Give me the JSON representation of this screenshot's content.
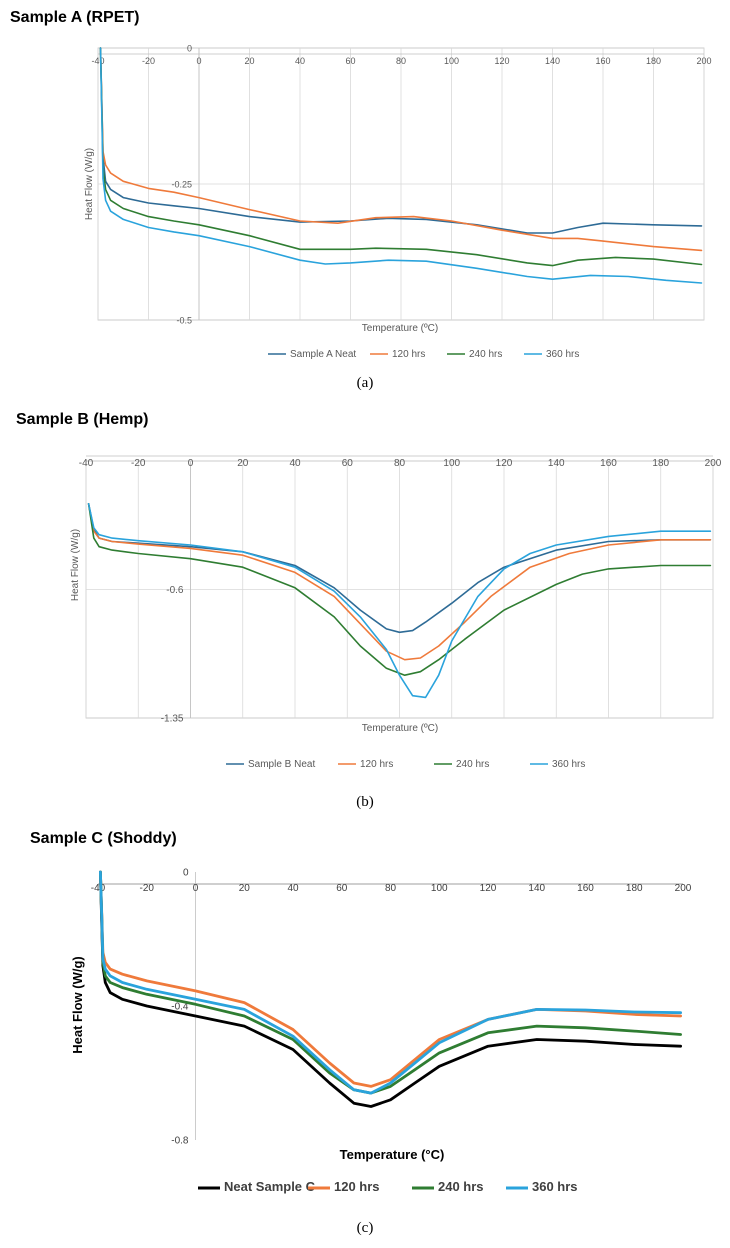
{
  "colors": {
    "blue_dark": "#2e6b96",
    "orange": "#ef7a3b",
    "green": "#2f7d32",
    "cyan": "#2aa3dc",
    "black": "#000000",
    "grid": "#d9d9d9",
    "axis": "#bfbfbf",
    "text": "#595959"
  },
  "chart_data": [
    {
      "type": "line",
      "title": "Sample A (RPET)",
      "caption": "(a)",
      "xlabel": "Temperature (ºC)",
      "ylabel": "Heat Flow (W/g)",
      "xlim": [
        -40,
        200
      ],
      "ylim": [
        -0.5,
        0
      ],
      "x_ticks": [
        -40,
        -20,
        0,
        20,
        40,
        60,
        80,
        100,
        120,
        140,
        160,
        180,
        200
      ],
      "y_ticks": [
        0,
        -0.25,
        -0.5
      ],
      "y_tick_labels": [
        "0",
        "-0.25",
        "-0.5"
      ],
      "grid": "vertical + y=-0.25",
      "legend": "bottom",
      "series": [
        {
          "name": "Sample A Neat",
          "color": "#2e6b96",
          "x": [
            -39,
            -38.5,
            -38,
            -37,
            -35,
            -30,
            -20,
            -10,
            0,
            20,
            40,
            60,
            75,
            90,
            110,
            130,
            140,
            150,
            160,
            180,
            199
          ],
          "y": [
            0,
            -0.1,
            -0.2,
            -0.245,
            -0.26,
            -0.275,
            -0.285,
            -0.29,
            -0.295,
            -0.31,
            -0.32,
            -0.318,
            -0.313,
            -0.315,
            -0.325,
            -0.34,
            -0.34,
            -0.33,
            -0.322,
            -0.325,
            -0.327
          ]
        },
        {
          "name": "120 hrs",
          "color": "#ef7a3b",
          "x": [
            -39,
            -38.5,
            -38,
            -37,
            -35,
            -30,
            -20,
            -10,
            0,
            20,
            40,
            55,
            70,
            85,
            100,
            120,
            140,
            150,
            160,
            180,
            199
          ],
          "y": [
            0,
            -0.1,
            -0.19,
            -0.215,
            -0.23,
            -0.245,
            -0.258,
            -0.265,
            -0.275,
            -0.297,
            -0.318,
            -0.322,
            -0.312,
            -0.31,
            -0.318,
            -0.335,
            -0.35,
            -0.35,
            -0.355,
            -0.365,
            -0.372
          ]
        },
        {
          "name": "240 hrs",
          "color": "#2f7d32",
          "x": [
            -39,
            -38.5,
            -38,
            -37,
            -35,
            -30,
            -20,
            -10,
            0,
            20,
            40,
            60,
            70,
            90,
            110,
            130,
            140,
            150,
            165,
            180,
            199
          ],
          "y": [
            0,
            -0.11,
            -0.22,
            -0.26,
            -0.28,
            -0.295,
            -0.31,
            -0.318,
            -0.325,
            -0.345,
            -0.37,
            -0.37,
            -0.368,
            -0.37,
            -0.38,
            -0.395,
            -0.4,
            -0.39,
            -0.385,
            -0.388,
            -0.398
          ]
        },
        {
          "name": "360 hrs",
          "color": "#2aa3dc",
          "x": [
            -39,
            -38.5,
            -38,
            -37,
            -35,
            -30,
            -20,
            -10,
            0,
            20,
            40,
            50,
            60,
            75,
            90,
            110,
            130,
            140,
            155,
            170,
            185,
            199
          ],
          "y": [
            0,
            -0.12,
            -0.24,
            -0.28,
            -0.3,
            -0.315,
            -0.33,
            -0.338,
            -0.345,
            -0.365,
            -0.39,
            -0.397,
            -0.395,
            -0.39,
            -0.392,
            -0.405,
            -0.42,
            -0.425,
            -0.418,
            -0.42,
            -0.427,
            -0.432
          ]
        }
      ]
    },
    {
      "type": "line",
      "title": "Sample B (Hemp)",
      "caption": "(b)",
      "xlabel": "Temperature (ºC)",
      "ylabel": "Heat Flow (W/g)",
      "xlim": [
        -40,
        200
      ],
      "ylim": [
        -1.35,
        0.15
      ],
      "x_ticks": [
        -40,
        -20,
        0,
        20,
        40,
        60,
        80,
        100,
        120,
        140,
        160,
        180,
        200
      ],
      "y_ticks": [
        -0.6,
        -1.35
      ],
      "y_tick_labels": [
        "-0.6",
        "-1.35"
      ],
      "grid": "vertical + y=-0.6",
      "legend": "bottom",
      "series": [
        {
          "name": "Sample B Neat",
          "color": "#2e6b96",
          "x": [
            -39,
            -37,
            -35,
            -30,
            -20,
            0,
            20,
            40,
            55,
            65,
            75,
            80,
            85,
            90,
            100,
            110,
            120,
            140,
            160,
            180,
            199
          ],
          "y": [
            -0.1,
            -0.25,
            -0.3,
            -0.32,
            -0.33,
            -0.35,
            -0.38,
            -0.46,
            -0.59,
            -0.72,
            -0.83,
            -0.85,
            -0.84,
            -0.79,
            -0.68,
            -0.56,
            -0.47,
            -0.37,
            -0.32,
            -0.31,
            -0.31
          ]
        },
        {
          "name": "120 hrs",
          "color": "#ef7a3b",
          "x": [
            -39,
            -37,
            -35,
            -30,
            -20,
            0,
            20,
            40,
            55,
            65,
            75,
            82,
            88,
            95,
            105,
            115,
            130,
            145,
            160,
            180,
            199
          ],
          "y": [
            -0.1,
            -0.26,
            -0.3,
            -0.32,
            -0.335,
            -0.36,
            -0.4,
            -0.5,
            -0.64,
            -0.8,
            -0.96,
            -1.01,
            -1.0,
            -0.93,
            -0.79,
            -0.64,
            -0.47,
            -0.39,
            -0.34,
            -0.31,
            -0.31
          ]
        },
        {
          "name": "240 hrs",
          "color": "#2f7d32",
          "x": [
            -39,
            -37,
            -35,
            -30,
            -20,
            0,
            20,
            40,
            55,
            65,
            75,
            82,
            88,
            95,
            105,
            120,
            140,
            150,
            160,
            180,
            199
          ],
          "y": [
            -0.1,
            -0.3,
            -0.35,
            -0.37,
            -0.39,
            -0.42,
            -0.47,
            -0.59,
            -0.76,
            -0.93,
            -1.06,
            -1.1,
            -1.08,
            -1.01,
            -0.89,
            -0.72,
            -0.57,
            -0.51,
            -0.48,
            -0.46,
            -0.46
          ]
        },
        {
          "name": "360 hrs",
          "color": "#2aa3dc",
          "x": [
            -39,
            -37,
            -35,
            -30,
            -20,
            0,
            20,
            40,
            55,
            65,
            75,
            80,
            85,
            90,
            95,
            100,
            110,
            120,
            130,
            140,
            160,
            180,
            199
          ],
          "y": [
            -0.1,
            -0.24,
            -0.28,
            -0.3,
            -0.315,
            -0.34,
            -0.38,
            -0.47,
            -0.61,
            -0.76,
            -0.95,
            -1.1,
            -1.22,
            -1.23,
            -1.1,
            -0.9,
            -0.64,
            -0.48,
            -0.39,
            -0.34,
            -0.29,
            -0.26,
            -0.26
          ]
        }
      ]
    },
    {
      "type": "line",
      "title": "Sample C (Shoddy)",
      "caption": "(c)",
      "xlabel": "Temperature (°C)",
      "ylabel": "Heat Flow (W/g)",
      "xlim": [
        -40,
        200
      ],
      "ylim": [
        -0.8,
        0
      ],
      "x_ticks": [
        -40,
        -20,
        0,
        20,
        40,
        60,
        80,
        100,
        120,
        140,
        160,
        180,
        200
      ],
      "y_ticks": [
        0,
        -0.4,
        -0.8
      ],
      "y_tick_labels": [
        "0",
        "-0.4",
        "-0.8"
      ],
      "grid": "none",
      "legend": "bottom",
      "series": [
        {
          "name": "Neat Sample C",
          "color": "#000000",
          "x": [
            -39,
            -38.5,
            -38,
            -37,
            -35,
            -30,
            -20,
            -10,
            0,
            20,
            40,
            55,
            65,
            72,
            80,
            90,
            100,
            120,
            140,
            160,
            180,
            199
          ],
          "y": [
            0,
            -0.15,
            -0.28,
            -0.33,
            -0.36,
            -0.38,
            -0.4,
            -0.415,
            -0.43,
            -0.46,
            -0.53,
            -0.63,
            -0.69,
            -0.7,
            -0.68,
            -0.63,
            -0.58,
            -0.52,
            -0.5,
            -0.505,
            -0.515,
            -0.52
          ]
        },
        {
          "name": "120 hrs",
          "color": "#ef7a3b",
          "x": [
            -39,
            -38.5,
            -38,
            -37,
            -35,
            -30,
            -20,
            -10,
            0,
            20,
            40,
            55,
            65,
            72,
            80,
            90,
            100,
            120,
            140,
            160,
            180,
            199
          ],
          "y": [
            0,
            -0.12,
            -0.24,
            -0.27,
            -0.29,
            -0.305,
            -0.325,
            -0.34,
            -0.355,
            -0.39,
            -0.47,
            -0.57,
            -0.63,
            -0.64,
            -0.62,
            -0.56,
            -0.5,
            -0.44,
            -0.41,
            -0.415,
            -0.425,
            -0.43
          ]
        },
        {
          "name": "240 hrs",
          "color": "#2f7d32",
          "x": [
            -39,
            -38.5,
            -38,
            -37,
            -35,
            -30,
            -20,
            -10,
            0,
            20,
            40,
            55,
            65,
            72,
            80,
            90,
            100,
            120,
            140,
            160,
            180,
            199
          ],
          "y": [
            0,
            -0.13,
            -0.27,
            -0.31,
            -0.33,
            -0.345,
            -0.365,
            -0.38,
            -0.395,
            -0.43,
            -0.5,
            -0.6,
            -0.65,
            -0.66,
            -0.64,
            -0.59,
            -0.54,
            -0.48,
            -0.46,
            -0.465,
            -0.475,
            -0.485
          ]
        },
        {
          "name": "360 hrs",
          "color": "#2aa3dc",
          "x": [
            -39,
            -38.5,
            -38,
            -37,
            -35,
            -30,
            -20,
            -10,
            0,
            20,
            40,
            55,
            65,
            72,
            80,
            90,
            100,
            120,
            140,
            160,
            180,
            199
          ],
          "y": [
            0,
            -0.13,
            -0.26,
            -0.29,
            -0.31,
            -0.33,
            -0.35,
            -0.365,
            -0.38,
            -0.41,
            -0.49,
            -0.59,
            -0.65,
            -0.66,
            -0.63,
            -0.57,
            -0.51,
            -0.44,
            -0.41,
            -0.412,
            -0.418,
            -0.42
          ]
        }
      ]
    }
  ]
}
